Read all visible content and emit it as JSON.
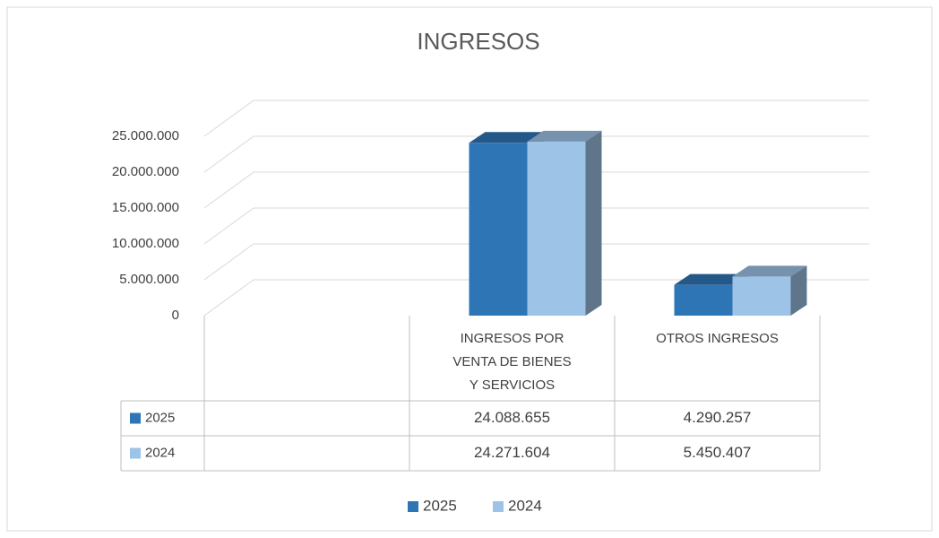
{
  "chart_data": {
    "type": "bar3d",
    "title": "INGRESOS",
    "categories": [
      null,
      "INGRESOS POR VENTA DE BIENES Y SERVICIOS",
      "OTROS INGRESOS"
    ],
    "series": [
      {
        "name": "2025",
        "color": "#2e75b6",
        "values": [
          null,
          24088655,
          4290257
        ],
        "value_labels": [
          null,
          "24.088.655",
          "4.290.257"
        ]
      },
      {
        "name": "2024",
        "color": "#9dc3e6",
        "values": [
          null,
          24271604,
          5450407
        ],
        "value_labels": [
          null,
          "24.271.604",
          "5.450.407"
        ]
      }
    ],
    "ylim": [
      0,
      25000000
    ],
    "yticks": [
      0,
      {
        "value": 5000000,
        "label": "5.000.000"
      },
      {
        "value": 10000000,
        "label": "10.000.000"
      },
      {
        "value": 15000000,
        "label": "15.000.000"
      },
      {
        "value": 20000000,
        "label": "20.000.000"
      },
      {
        "value": 25000000,
        "label": "25.000.000"
      }
    ],
    "grid": true,
    "data_table": true,
    "legend": "bottom"
  }
}
